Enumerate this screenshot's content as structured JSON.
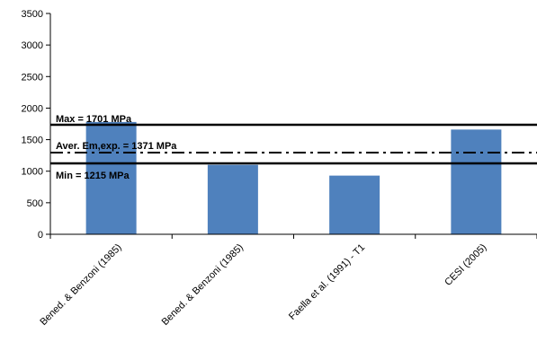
{
  "chart_data": {
    "type": "bar",
    "categories": [
      "Bened. & Benzoni (1985)",
      "Bened. & Benzoni (1985)",
      "Faella et al. (1991) - T1",
      "CESI (2005)"
    ],
    "series": [
      {
        "values": [
          1780,
          1100,
          930,
          1660
        ],
        "color": "#4f81bd"
      }
    ],
    "ylim": [
      0,
      3500
    ],
    "yticks": [
      0,
      500,
      1000,
      1500,
      2000,
      2500,
      3000,
      3500
    ],
    "grid": false,
    "reference_lines": [
      {
        "label": "Max = 1701 MPa",
        "value": 1701,
        "style": "solid"
      },
      {
        "label": "Aver. Em,exp. = 1371 MPa",
        "value": 1371,
        "style": "dash-dot"
      },
      {
        "label": "Min = 1215 MPa",
        "value": 1215,
        "style": "solid"
      }
    ]
  }
}
